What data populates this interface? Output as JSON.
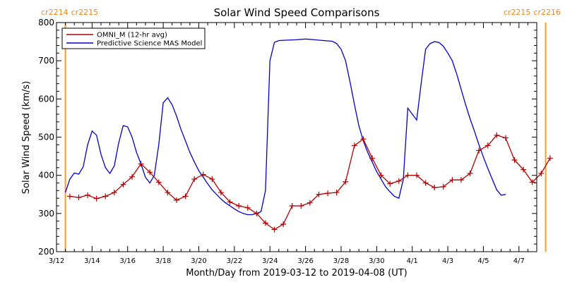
{
  "chart_data": {
    "type": "line",
    "title": "Solar Wind Speed Comparisons",
    "xlabel": "Month/Day from 2019-03-12 to 2019-04-08 (UT)",
    "ylabel": "Solar Wind Speed (km/s)",
    "xlim": [
      "2019-03-12",
      "2019-04-08"
    ],
    "ylim": [
      200,
      800
    ],
    "yticks": [
      200,
      300,
      400,
      500,
      600,
      700,
      800
    ],
    "xtick_labels": [
      "3/12",
      "3/14",
      "3/16",
      "3/18",
      "3/20",
      "3/22",
      "3/24",
      "3/26",
      "3/28",
      "3/30",
      "4/1",
      "4/3",
      "4/5",
      "4/7"
    ],
    "xtick_dates": [
      "2019-03-12",
      "2019-03-14",
      "2019-03-16",
      "2019-03-18",
      "2019-03-20",
      "2019-03-22",
      "2019-03-24",
      "2019-03-26",
      "2019-03-28",
      "2019-03-30",
      "2019-04-01",
      "2019-04-03",
      "2019-04-05",
      "2019-04-07"
    ],
    "legend_position": "top-left",
    "carrington_markers": [
      {
        "date": "2019-03-12 12:00",
        "labels": [
          "cr2214",
          "cr2215"
        ],
        "align": "left"
      },
      {
        "date": "2019-04-08 12:00",
        "labels": [
          "cr2215",
          "cr2216"
        ],
        "align": "right"
      }
    ],
    "series": [
      {
        "name": "OMNI_M (12-hr avg)",
        "color": "#b00000",
        "marker": "plus",
        "points": [
          [
            "2019-03-12 18:00",
            345
          ],
          [
            "2019-03-13 06:00",
            342
          ],
          [
            "2019-03-13 18:00",
            348
          ],
          [
            "2019-03-14 06:00",
            339
          ],
          [
            "2019-03-14 18:00",
            345
          ],
          [
            "2019-03-15 06:00",
            355
          ],
          [
            "2019-03-15 18:00",
            376
          ],
          [
            "2019-03-16 06:00",
            396
          ],
          [
            "2019-03-16 18:00",
            430
          ],
          [
            "2019-03-17 06:00",
            408
          ],
          [
            "2019-03-17 18:00",
            382
          ],
          [
            "2019-03-18 06:00",
            355
          ],
          [
            "2019-03-18 18:00",
            335
          ],
          [
            "2019-03-19 06:00",
            345
          ],
          [
            "2019-03-19 18:00",
            390
          ],
          [
            "2019-03-20 06:00",
            402
          ],
          [
            "2019-03-20 18:00",
            390
          ],
          [
            "2019-03-21 06:00",
            355
          ],
          [
            "2019-03-21 18:00",
            330
          ],
          [
            "2019-03-22 06:00",
            320
          ],
          [
            "2019-03-22 18:00",
            315
          ],
          [
            "2019-03-23 06:00",
            300
          ],
          [
            "2019-03-23 18:00",
            275
          ],
          [
            "2019-03-24 06:00",
            258
          ],
          [
            "2019-03-24 18:00",
            272
          ],
          [
            "2019-03-25 06:00",
            320
          ],
          [
            "2019-03-25 18:00",
            320
          ],
          [
            "2019-03-26 06:00",
            328
          ],
          [
            "2019-03-26 18:00",
            350
          ],
          [
            "2019-03-27 06:00",
            353
          ],
          [
            "2019-03-27 18:00",
            355
          ],
          [
            "2019-03-28 06:00",
            383
          ],
          [
            "2019-03-28 18:00",
            478
          ],
          [
            "2019-03-29 06:00",
            495
          ],
          [
            "2019-03-29 18:00",
            445
          ],
          [
            "2019-03-30 06:00",
            400
          ],
          [
            "2019-03-30 18:00",
            378
          ],
          [
            "2019-03-31 06:00",
            385
          ],
          [
            "2019-03-31 18:00",
            400
          ],
          [
            "2019-04-01 06:00",
            400
          ],
          [
            "2019-04-01 18:00",
            380
          ],
          [
            "2019-04-02 06:00",
            368
          ],
          [
            "2019-04-02 18:00",
            370
          ],
          [
            "2019-04-03 06:00",
            388
          ],
          [
            "2019-04-03 18:00",
            388
          ],
          [
            "2019-04-04 06:00",
            405
          ],
          [
            "2019-04-04 18:00",
            465
          ],
          [
            "2019-04-05 06:00",
            478
          ],
          [
            "2019-04-05 18:00",
            505
          ],
          [
            "2019-04-06 06:00",
            498
          ],
          [
            "2019-04-06 18:00",
            440
          ],
          [
            "2019-04-07 06:00",
            415
          ],
          [
            "2019-04-07 18:00",
            382
          ],
          [
            "2019-04-08 06:00",
            405
          ],
          [
            "2019-04-08 18:00",
            445
          ]
        ]
      },
      {
        "name": "Predictive Science MAS Model",
        "color": "#0000cc",
        "marker": "none",
        "points": [
          [
            "2019-03-12 12:00",
            355
          ],
          [
            "2019-03-12 18:00",
            390
          ],
          [
            "2019-03-13 00:00",
            406
          ],
          [
            "2019-03-13 06:00",
            403
          ],
          [
            "2019-03-13 12:00",
            422
          ],
          [
            "2019-03-13 18:00",
            480
          ],
          [
            "2019-03-14 00:00",
            516
          ],
          [
            "2019-03-14 06:00",
            505
          ],
          [
            "2019-03-14 12:00",
            455
          ],
          [
            "2019-03-14 18:00",
            420
          ],
          [
            "2019-03-15 00:00",
            405
          ],
          [
            "2019-03-15 06:00",
            425
          ],
          [
            "2019-03-15 12:00",
            485
          ],
          [
            "2019-03-15 18:00",
            530
          ],
          [
            "2019-03-16 00:00",
            527
          ],
          [
            "2019-03-16 06:00",
            500
          ],
          [
            "2019-03-16 12:00",
            460
          ],
          [
            "2019-03-16 18:00",
            430
          ],
          [
            "2019-03-17 00:00",
            395
          ],
          [
            "2019-03-17 06:00",
            380
          ],
          [
            "2019-03-17 12:00",
            400
          ],
          [
            "2019-03-17 18:00",
            480
          ],
          [
            "2019-03-18 00:00",
            590
          ],
          [
            "2019-03-18 06:00",
            603
          ],
          [
            "2019-03-18 12:00",
            585
          ],
          [
            "2019-03-18 18:00",
            555
          ],
          [
            "2019-03-19 00:00",
            520
          ],
          [
            "2019-03-19 06:00",
            490
          ],
          [
            "2019-03-19 12:00",
            460
          ],
          [
            "2019-03-19 18:00",
            435
          ],
          [
            "2019-03-20 00:00",
            412
          ],
          [
            "2019-03-20 06:00",
            395
          ],
          [
            "2019-03-20 12:00",
            378
          ],
          [
            "2019-03-20 18:00",
            362
          ],
          [
            "2019-03-21 00:00",
            350
          ],
          [
            "2019-03-21 06:00",
            338
          ],
          [
            "2019-03-21 12:00",
            328
          ],
          [
            "2019-03-21 18:00",
            320
          ],
          [
            "2019-03-22 00:00",
            312
          ],
          [
            "2019-03-22 06:00",
            305
          ],
          [
            "2019-03-22 12:00",
            300
          ],
          [
            "2019-03-22 18:00",
            297
          ],
          [
            "2019-03-23 00:00",
            297
          ],
          [
            "2019-03-23 06:00",
            300
          ],
          [
            "2019-03-23 12:00",
            305
          ],
          [
            "2019-03-23 18:00",
            360
          ],
          [
            "2019-03-24 00:00",
            700
          ],
          [
            "2019-03-24 06:00",
            748
          ],
          [
            "2019-03-24 12:00",
            753
          ],
          [
            "2019-03-25 00:00",
            754
          ],
          [
            "2019-03-25 12:00",
            755
          ],
          [
            "2019-03-26 00:00",
            757
          ],
          [
            "2019-03-26 12:00",
            755
          ],
          [
            "2019-03-27 00:00",
            753
          ],
          [
            "2019-03-27 12:00",
            751
          ],
          [
            "2019-03-27 18:00",
            745
          ],
          [
            "2019-03-28 00:00",
            730
          ],
          [
            "2019-03-28 06:00",
            700
          ],
          [
            "2019-03-28 12:00",
            645
          ],
          [
            "2019-03-28 18:00",
            585
          ],
          [
            "2019-03-29 00:00",
            530
          ],
          [
            "2019-03-29 06:00",
            490
          ],
          [
            "2019-03-29 12:00",
            460
          ],
          [
            "2019-03-29 18:00",
            435
          ],
          [
            "2019-03-30 00:00",
            410
          ],
          [
            "2019-03-30 06:00",
            390
          ],
          [
            "2019-03-30 12:00",
            370
          ],
          [
            "2019-03-30 18:00",
            357
          ],
          [
            "2019-03-31 00:00",
            345
          ],
          [
            "2019-03-31 06:00",
            340
          ],
          [
            "2019-03-31 12:00",
            390
          ],
          [
            "2019-03-31 18:00",
            576
          ],
          [
            "2019-04-01 00:00",
            560
          ],
          [
            "2019-04-01 06:00",
            545
          ],
          [
            "2019-04-01 12:00",
            640
          ],
          [
            "2019-04-01 18:00",
            730
          ],
          [
            "2019-04-02 00:00",
            745
          ],
          [
            "2019-04-02 06:00",
            750
          ],
          [
            "2019-04-02 12:00",
            748
          ],
          [
            "2019-04-02 18:00",
            738
          ],
          [
            "2019-04-03 00:00",
            720
          ],
          [
            "2019-04-03 06:00",
            700
          ],
          [
            "2019-04-03 12:00",
            665
          ],
          [
            "2019-04-03 18:00",
            625
          ],
          [
            "2019-04-04 00:00",
            585
          ],
          [
            "2019-04-04 06:00",
            548
          ],
          [
            "2019-04-04 12:00",
            515
          ],
          [
            "2019-04-04 18:00",
            480
          ],
          [
            "2019-04-05 00:00",
            448
          ],
          [
            "2019-04-05 06:00",
            418
          ],
          [
            "2019-04-05 12:00",
            390
          ],
          [
            "2019-04-05 18:00",
            362
          ],
          [
            "2019-04-06 00:00",
            348
          ],
          [
            "2019-04-06 06:00",
            350
          ]
        ]
      }
    ]
  }
}
